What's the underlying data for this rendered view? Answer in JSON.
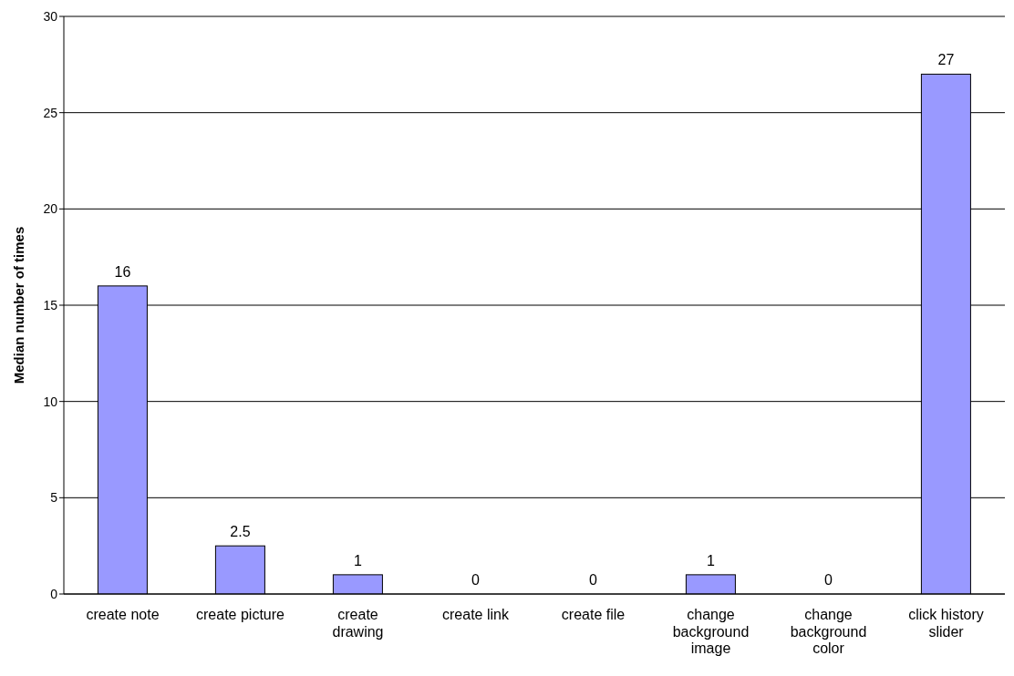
{
  "chart_data": {
    "type": "bar",
    "ylabel": "Median number of times",
    "categories": [
      "create note",
      "create picture",
      "create drawing",
      "create link",
      "create file",
      "change background image",
      "change background color",
      "click history slider"
    ],
    "values": [
      16,
      2.5,
      1,
      0,
      0,
      1,
      0,
      27
    ],
    "color": "#9999ff",
    "ylim": [
      0,
      30
    ],
    "yticks": [
      0,
      5,
      10,
      15,
      20,
      25,
      30
    ],
    "grid": "y",
    "data_labels": true
  }
}
